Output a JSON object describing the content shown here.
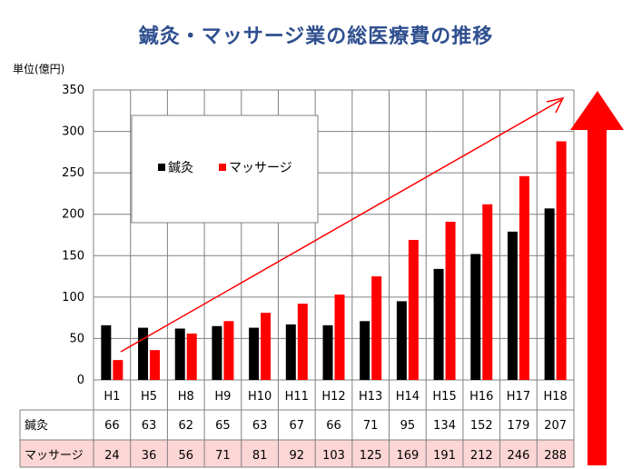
{
  "chart_data": {
    "type": "bar",
    "title": "鍼灸・マッサージ業の総医療費の推移",
    "unit_label": "単位(億円)",
    "categories": [
      "H1",
      "H5",
      "H8",
      "H9",
      "H10",
      "H11",
      "H12",
      "H13",
      "H14",
      "H15",
      "H16",
      "H17",
      "H18"
    ],
    "series": [
      {
        "name": "鍼灸",
        "color": "#000000",
        "values": [
          66,
          63,
          62,
          65,
          63,
          67,
          66,
          71,
          95,
          134,
          152,
          179,
          207
        ]
      },
      {
        "name": "マッサージ",
        "color": "#ff0000",
        "values": [
          24,
          36,
          56,
          71,
          81,
          92,
          103,
          125,
          169,
          191,
          212,
          246,
          288
        ]
      }
    ],
    "ylim": [
      0,
      350
    ],
    "yticks": [
      0,
      50,
      100,
      150,
      200,
      250,
      300,
      350
    ],
    "grid": true,
    "legend": "inside-top-left",
    "table": true,
    "trend_arrow_color": "#ff0000",
    "table_highlight_color": "#fcd5d5"
  }
}
